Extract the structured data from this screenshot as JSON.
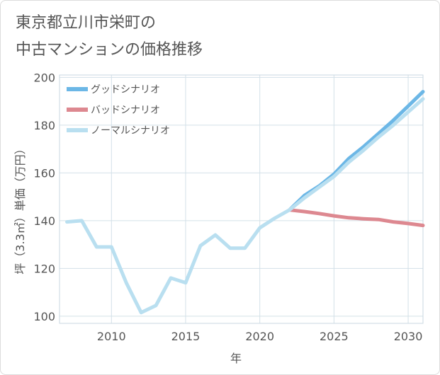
{
  "title_lines": [
    "東京都立川市栄町の",
    "中古マンションの価格推移"
  ],
  "chart_data": {
    "type": "line",
    "xlabel": "年",
    "ylabel": "坪（3.3㎡）単価（万円）",
    "xlim": [
      2006.5,
      2031
    ],
    "ylim": [
      97,
      201
    ],
    "xticks": [
      2010,
      2015,
      2020,
      2025,
      2030
    ],
    "yticks": [
      100,
      120,
      140,
      160,
      180,
      200
    ],
    "grid": true,
    "legend_position": "top-left",
    "series": [
      {
        "name": "グッドシナリオ",
        "color": "#6cb7e6",
        "x": [
          2022,
          2023,
          2024,
          2025,
          2026,
          2027,
          2028,
          2029,
          2030,
          2031
        ],
        "y": [
          144.5,
          150.5,
          154.5,
          159.5,
          166,
          171,
          176.5,
          182,
          188,
          194
        ]
      },
      {
        "name": "バッドシナリオ",
        "color": "#dd8890",
        "x": [
          2022,
          2023,
          2024,
          2025,
          2026,
          2027,
          2028,
          2029,
          2030,
          2031
        ],
        "y": [
          144.5,
          143.8,
          143,
          142,
          141.2,
          140.8,
          140.5,
          139.5,
          138.8,
          138
        ]
      },
      {
        "name": "ノーマルシナリオ",
        "color": "#b9dff0",
        "x": [
          2007,
          2008,
          2009,
          2010,
          2011,
          2012,
          2013,
          2014,
          2015,
          2016,
          2017,
          2018,
          2019,
          2020,
          2021,
          2022,
          2023,
          2024,
          2025,
          2026,
          2027,
          2028,
          2029,
          2030,
          2031
        ],
        "y": [
          139.5,
          140,
          129,
          129,
          114,
          101.5,
          104.5,
          116,
          114,
          129.5,
          134,
          128.5,
          128.5,
          137,
          141,
          144.5,
          149.5,
          154,
          158.5,
          164.5,
          169.5,
          175,
          180,
          185.5,
          191
        ]
      }
    ]
  }
}
